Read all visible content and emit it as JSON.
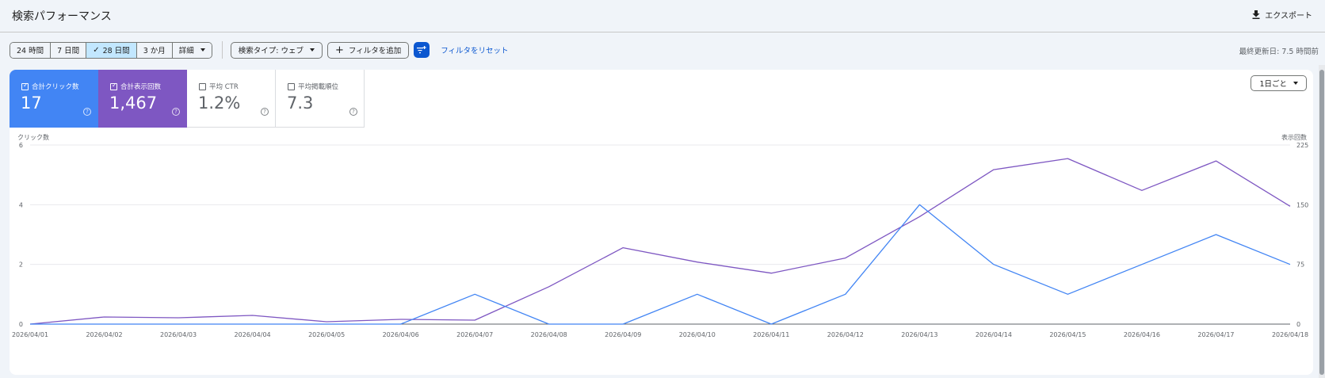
{
  "header": {
    "title": "検索パフォーマンス",
    "export_label": "エクスポート"
  },
  "toolbar": {
    "ranges": [
      {
        "label": "24 時間",
        "selected": false
      },
      {
        "label": "7 日間",
        "selected": false
      },
      {
        "label": "28 日間",
        "selected": true
      },
      {
        "label": "3 か月",
        "selected": false
      },
      {
        "label": "詳細",
        "selected": false
      }
    ],
    "search_type_label": "検索タイプ: ウェブ",
    "add_filter_label": "フィルタを追加",
    "reset_filter_label": "フィルタをリセット",
    "last_updated": "最終更新日: 7.5 時間前"
  },
  "cards": [
    {
      "label": "合計クリック数",
      "value": "17",
      "checked": true
    },
    {
      "label": "合計表示回数",
      "value": "1,467",
      "checked": true
    },
    {
      "label": "平均 CTR",
      "value": "1.2%",
      "checked": false
    },
    {
      "label": "平均掲載順位",
      "value": "7.3",
      "checked": false
    }
  ],
  "granularity_label": "1日ごと",
  "colors": {
    "clicks": "#4285f4",
    "impressions": "#7e57c2",
    "accent": "#0b57d0"
  },
  "chart_data": {
    "type": "line",
    "ylabel_left": "クリック数",
    "ylabel_right": "表示回数",
    "y_left_ticks": [
      0,
      2,
      4,
      6
    ],
    "y_right_ticks": [
      0,
      75,
      150,
      225
    ],
    "ylim_left": [
      0,
      6
    ],
    "ylim_right": [
      0,
      225
    ],
    "grid": true,
    "categories": [
      "2026/04/01",
      "2026/04/02",
      "2026/04/03",
      "2026/04/04",
      "2026/04/05",
      "2026/04/06",
      "2026/04/07",
      "2026/04/08",
      "2026/04/09",
      "2026/04/10",
      "2026/04/11",
      "2026/04/12",
      "2026/04/13",
      "2026/04/14",
      "2026/04/15",
      "2026/04/16",
      "2026/04/17",
      "2026/04/18"
    ],
    "series": [
      {
        "name": "合計クリック数",
        "axis": "left",
        "values": [
          0,
          0,
          0,
          0,
          0,
          0,
          1,
          0,
          0,
          1,
          0,
          1,
          4,
          2,
          1,
          2,
          3,
          2
        ]
      },
      {
        "name": "合計表示回数",
        "axis": "right",
        "values": [
          0,
          9,
          8,
          11,
          3,
          6,
          5,
          47,
          96,
          78,
          64,
          83,
          135,
          194,
          208,
          168,
          205,
          148
        ]
      }
    ]
  }
}
